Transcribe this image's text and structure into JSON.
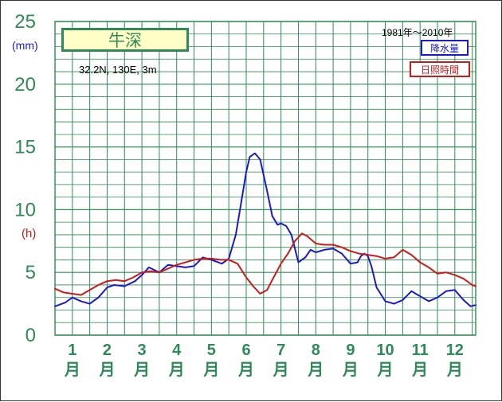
{
  "station": {
    "name": "牛深",
    "coords": "32.2N,  130E,  3m"
  },
  "legend": {
    "period": "1981年～2010年",
    "precip_label": "降水量",
    "sunshine_label": "日照時間"
  },
  "units": {
    "left": "(mm)",
    "right": "(h)"
  },
  "colors": {
    "grid": "#2e8b57",
    "precip": "#1a1acc",
    "sunshine": "#cc1a1a",
    "box_fill": "#ffffc8"
  },
  "chart_data": {
    "type": "line",
    "ylim": [
      0,
      25
    ],
    "yticks": [
      "0",
      "5",
      "10",
      "15",
      "20",
      "25"
    ],
    "categories": [
      "1",
      "2",
      "3",
      "4",
      "5",
      "6",
      "7",
      "8",
      "9",
      "10",
      "11",
      "12"
    ],
    "category_suffix": "月",
    "x_range": [
      0.5,
      12.6
    ],
    "series": [
      {
        "name": "降水量",
        "color": "#1a1acc",
        "x": [
          0.5,
          0.8,
          1.0,
          1.25,
          1.5,
          1.75,
          2.0,
          2.2,
          2.5,
          2.8,
          3.0,
          3.2,
          3.5,
          3.75,
          4.0,
          4.25,
          4.5,
          4.75,
          5.0,
          5.3,
          5.5,
          5.7,
          5.85,
          6.0,
          6.1,
          6.25,
          6.4,
          6.6,
          6.75,
          6.9,
          7.0,
          7.15,
          7.3,
          7.5,
          7.7,
          7.85,
          8.0,
          8.25,
          8.5,
          8.75,
          9.0,
          9.2,
          9.3,
          9.4,
          9.5,
          9.6,
          9.75,
          10.0,
          10.25,
          10.5,
          10.75,
          11.0,
          11.25,
          11.5,
          11.75,
          12.0,
          12.25,
          12.45,
          12.6
        ],
        "values": [
          2.3,
          2.6,
          3.0,
          2.7,
          2.5,
          3.0,
          3.8,
          4.0,
          3.9,
          4.3,
          4.8,
          5.4,
          5.0,
          5.6,
          5.5,
          5.4,
          5.5,
          6.2,
          6.0,
          5.7,
          6.1,
          8.0,
          10.5,
          13.0,
          14.2,
          14.5,
          14.0,
          11.5,
          9.5,
          8.8,
          8.9,
          8.7,
          8.0,
          5.8,
          6.2,
          6.8,
          6.6,
          6.8,
          6.9,
          6.5,
          5.7,
          5.8,
          6.3,
          6.5,
          6.3,
          5.5,
          3.8,
          2.7,
          2.5,
          2.8,
          3.5,
          3.1,
          2.7,
          3.0,
          3.5,
          3.6,
          2.8,
          2.3,
          2.4
        ]
      },
      {
        "name": "日照時間",
        "color": "#cc1a1a",
        "x": [
          0.5,
          0.75,
          1.0,
          1.25,
          1.5,
          1.75,
          2.0,
          2.25,
          2.5,
          2.75,
          3.0,
          3.25,
          3.5,
          3.75,
          4.0,
          4.25,
          4.5,
          4.75,
          5.0,
          5.25,
          5.5,
          5.75,
          6.0,
          6.2,
          6.4,
          6.6,
          6.75,
          7.0,
          7.2,
          7.4,
          7.6,
          7.75,
          8.0,
          8.25,
          8.5,
          8.75,
          9.0,
          9.25,
          9.5,
          9.75,
          10.0,
          10.25,
          10.5,
          10.75,
          11.0,
          11.25,
          11.5,
          11.75,
          12.0,
          12.25,
          12.5,
          12.6
        ],
        "values": [
          3.7,
          3.4,
          3.3,
          3.2,
          3.6,
          4.0,
          4.3,
          4.4,
          4.3,
          4.6,
          5.0,
          5.1,
          5.0,
          5.3,
          5.6,
          5.8,
          6.0,
          6.1,
          6.1,
          6.0,
          6.0,
          5.7,
          4.6,
          3.9,
          3.3,
          3.6,
          4.4,
          5.7,
          6.5,
          7.5,
          8.1,
          7.9,
          7.3,
          7.2,
          7.2,
          7.0,
          6.7,
          6.5,
          6.4,
          6.3,
          6.1,
          6.2,
          6.8,
          6.4,
          5.8,
          5.4,
          4.9,
          5.0,
          4.8,
          4.5,
          4.0,
          3.9
        ]
      }
    ]
  }
}
